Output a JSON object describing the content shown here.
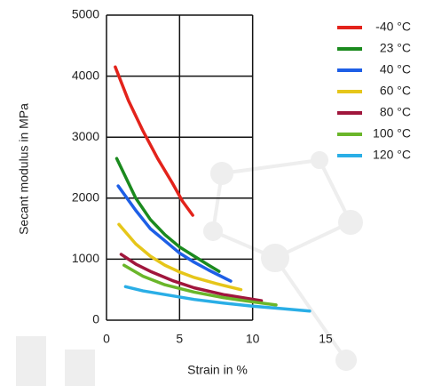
{
  "chart_data": {
    "type": "line",
    "xlabel": "Strain in %",
    "ylabel": "Secant modulus in MPa",
    "xlim": [
      0,
      15
    ],
    "xticks": [
      0,
      5,
      10,
      15
    ],
    "ylim": [
      0,
      5000
    ],
    "yticks": [
      0,
      1000,
      2000,
      3000,
      4000,
      5000
    ],
    "grid": true,
    "legend": "right",
    "series": [
      {
        "name": "-40 °C",
        "color": "#e3231b",
        "x": [
          0.6,
          1.5,
          2.5,
          3.5,
          4.5,
          5.2,
          5.9
        ],
        "values": [
          4150,
          3600,
          3100,
          2650,
          2250,
          1950,
          1720
        ]
      },
      {
        "name": "23 °C",
        "color": "#1b8a1e",
        "x": [
          0.7,
          2,
          3,
          4,
          5,
          6,
          7,
          7.7
        ],
        "values": [
          2650,
          2000,
          1650,
          1400,
          1200,
          1050,
          900,
          800
        ]
      },
      {
        "name": "40 °C",
        "color": "#1e5fe6",
        "x": [
          0.8,
          2,
          3,
          4,
          5,
          6,
          7,
          8.5
        ],
        "values": [
          2200,
          1800,
          1500,
          1300,
          1100,
          950,
          820,
          640
        ]
      },
      {
        "name": "60 °C",
        "color": "#e6c61a",
        "x": [
          0.85,
          2,
          3,
          4,
          5,
          6,
          7.5,
          9.2
        ],
        "values": [
          1570,
          1250,
          1050,
          900,
          790,
          700,
          600,
          500
        ]
      },
      {
        "name": "80 °C",
        "color": "#a0163c",
        "x": [
          1.0,
          2,
          3,
          4.5,
          6,
          8,
          10.6
        ],
        "values": [
          1080,
          920,
          800,
          650,
          530,
          420,
          320
        ]
      },
      {
        "name": "100 °C",
        "color": "#6ab62a",
        "x": [
          1.2,
          2.5,
          4,
          6,
          8,
          10,
          11.6
        ],
        "values": [
          900,
          720,
          580,
          460,
          370,
          300,
          250
        ]
      },
      {
        "name": "120 °C",
        "color": "#2aaee6",
        "x": [
          1.3,
          2.5,
          4,
          6,
          8,
          10,
          12,
          13.9
        ],
        "values": [
          550,
          480,
          420,
          340,
          280,
          230,
          190,
          150
        ]
      }
    ]
  }
}
